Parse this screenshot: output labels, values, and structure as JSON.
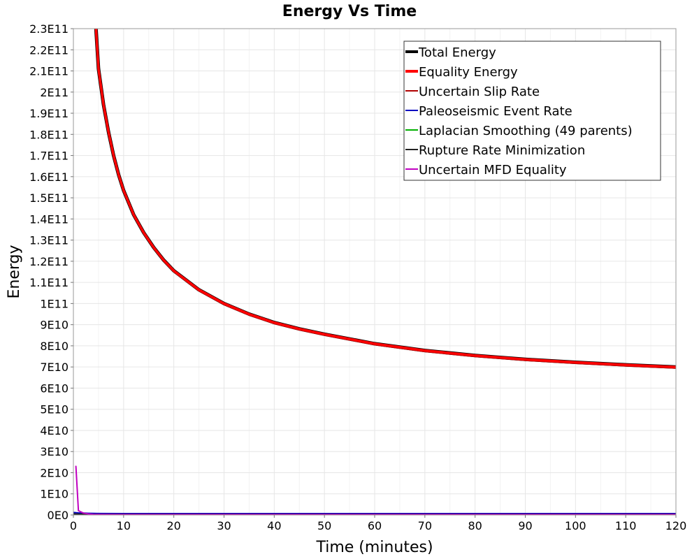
{
  "chart_data": {
    "type": "line",
    "title": "Energy Vs Time",
    "xlabel": "Time (minutes)",
    "ylabel": "Energy",
    "xlim": [
      0,
      120
    ],
    "ylim": [
      0,
      230000000000
    ],
    "x_ticks": [
      0,
      10,
      20,
      30,
      40,
      50,
      60,
      70,
      80,
      90,
      100,
      110,
      120
    ],
    "x_tick_labels": [
      "0",
      "10",
      "20",
      "30",
      "40",
      "50",
      "60",
      "70",
      "80",
      "90",
      "100",
      "110",
      "120"
    ],
    "y_ticks": [
      0,
      10000000000,
      20000000000,
      30000000000,
      40000000000,
      50000000000,
      60000000000,
      70000000000,
      80000000000,
      90000000000,
      100000000000,
      110000000000,
      120000000000,
      130000000000,
      140000000000,
      150000000000,
      160000000000,
      170000000000,
      180000000000,
      190000000000,
      200000000000,
      210000000000,
      220000000000,
      230000000000
    ],
    "y_tick_labels": [
      "0E0",
      "1E10",
      "2E10",
      "3E10",
      "4E10",
      "5E10",
      "6E10",
      "7E10",
      "8E10",
      "9E10",
      "1E11",
      "1.1E11",
      "1.2E11",
      "1.3E11",
      "1.4E11",
      "1.5E11",
      "1.6E11",
      "1.7E11",
      "1.8E11",
      "1.9E11",
      "2E11",
      "2.1E11",
      "2.2E11",
      "2.3E11"
    ],
    "grid": true,
    "legend_position": "top-right",
    "series": [
      {
        "name": "Total Energy",
        "color": "#000000",
        "legend_width": "thick",
        "x": [
          4.5,
          5,
          6,
          7,
          8,
          9,
          10,
          12,
          14,
          16,
          18,
          20,
          25,
          30,
          35,
          40,
          45,
          50,
          60,
          70,
          80,
          90,
          100,
          110,
          120
        ],
        "values": [
          230000000000,
          211000000000,
          194000000000,
          181000000000,
          170000000000,
          161000000000,
          153500000000,
          142000000000,
          133500000000,
          126500000000,
          120500000000,
          115500000000,
          106500000000,
          100000000000,
          95000000000,
          91000000000,
          88000000000,
          85500000000,
          81000000000,
          77800000000,
          75400000000,
          73600000000,
          72200000000,
          71000000000,
          70000000000
        ]
      },
      {
        "name": "Equality Energy",
        "color": "#ff0000",
        "legend_width": "thick",
        "x": [
          4.5,
          5,
          6,
          7,
          8,
          9,
          10,
          12,
          14,
          16,
          18,
          20,
          25,
          30,
          35,
          40,
          45,
          50,
          60,
          70,
          80,
          90,
          100,
          110,
          120
        ],
        "values": [
          230000000000,
          211000000000,
          194000000000,
          181000000000,
          170000000000,
          161000000000,
          153500000000,
          142000000000,
          133500000000,
          126500000000,
          120500000000,
          115500000000,
          106500000000,
          100000000000,
          95000000000,
          91000000000,
          88000000000,
          85500000000,
          81000000000,
          77800000000,
          75400000000,
          73600000000,
          72200000000,
          71000000000,
          70000000000
        ]
      },
      {
        "name": "Uncertain Slip Rate",
        "color": "#b00000",
        "legend_width": "thin",
        "x": [
          4.5,
          5,
          6,
          7,
          8,
          9,
          10,
          12,
          14,
          16,
          18,
          20,
          25,
          30,
          35,
          40,
          45,
          50,
          60,
          70,
          80,
          90,
          100,
          110,
          120
        ],
        "values": [
          229500000000,
          210500000000,
          193500000000,
          180500000000,
          169500000000,
          160500000000,
          153000000000,
          141500000000,
          133000000000,
          126000000000,
          120000000000,
          115000000000,
          106000000000,
          99500000000,
          94500000000,
          90500000000,
          87500000000,
          85000000000,
          80500000000,
          77300000000,
          74900000000,
          73100000000,
          71700000000,
          70500000000,
          69500000000
        ]
      },
      {
        "name": "Paleoseismic Event Rate",
        "color": "#0000c0",
        "legend_width": "thin",
        "x": [
          0,
          1,
          2,
          3,
          5,
          10,
          20,
          40,
          60,
          80,
          100,
          120
        ],
        "values": [
          1200000000,
          1000000000,
          900000000,
          800000000,
          700000000,
          650000000,
          650000000,
          650000000,
          650000000,
          650000000,
          650000000,
          650000000
        ]
      },
      {
        "name": "Laplacian Smoothing (49 parents)",
        "color": "#00b000",
        "legend_width": "thin",
        "x": [
          0,
          1,
          2,
          3,
          5,
          10,
          20,
          40,
          60,
          80,
          100,
          120
        ],
        "values": [
          300000000,
          200000000,
          150000000,
          120000000,
          100000000,
          100000000,
          100000000,
          100000000,
          100000000,
          100000000,
          100000000,
          100000000
        ]
      },
      {
        "name": "Rupture Rate Minimization",
        "color": "#222222",
        "legend_width": "thin",
        "x": [
          0,
          1,
          2,
          3,
          5,
          10,
          20,
          40,
          60,
          80,
          100,
          120
        ],
        "values": [
          500000000,
          400000000,
          350000000,
          320000000,
          300000000,
          300000000,
          300000000,
          300000000,
          300000000,
          300000000,
          300000000,
          300000000
        ]
      },
      {
        "name": "Uncertain MFD Equality",
        "color": "#c000c0",
        "legend_width": "thin",
        "x": [
          0.5,
          1,
          2,
          3,
          4,
          5,
          10,
          20,
          40,
          60,
          80,
          100,
          120
        ],
        "values": [
          23000000000,
          2000000000,
          900000000,
          500000000,
          300000000,
          250000000,
          200000000,
          200000000,
          200000000,
          200000000,
          200000000,
          200000000,
          200000000
        ]
      }
    ]
  }
}
